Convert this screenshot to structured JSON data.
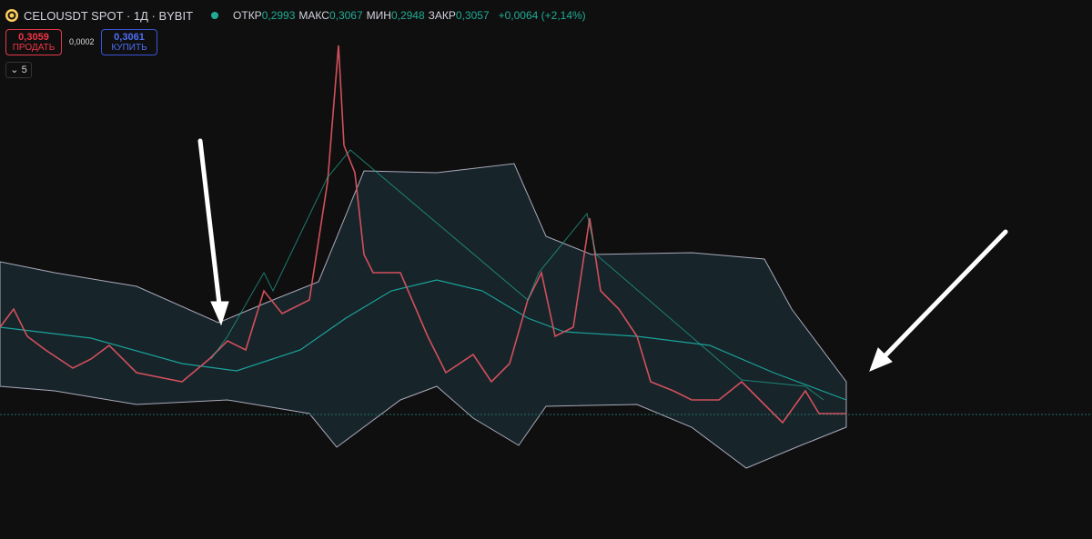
{
  "header": {
    "symbol": "CELOUSDT SPOT · 1Д · BYBIT",
    "ohlc": [
      {
        "label": "ОТКР",
        "value": "0,2993"
      },
      {
        "label": "МАКС",
        "value": "0,3067"
      },
      {
        "label": "МИН",
        "value": "0,2948"
      },
      {
        "label": "ЗАКР",
        "value": "0,3057"
      }
    ],
    "change": "+0,0064 (+2,14%)"
  },
  "trade": {
    "sell_price": "0,3059",
    "sell_label": "ПРОДАТЬ",
    "spread": "0,0002",
    "buy_price": "0,3061",
    "buy_label": "КУПИТЬ"
  },
  "indicators": {
    "count": "5"
  }
}
